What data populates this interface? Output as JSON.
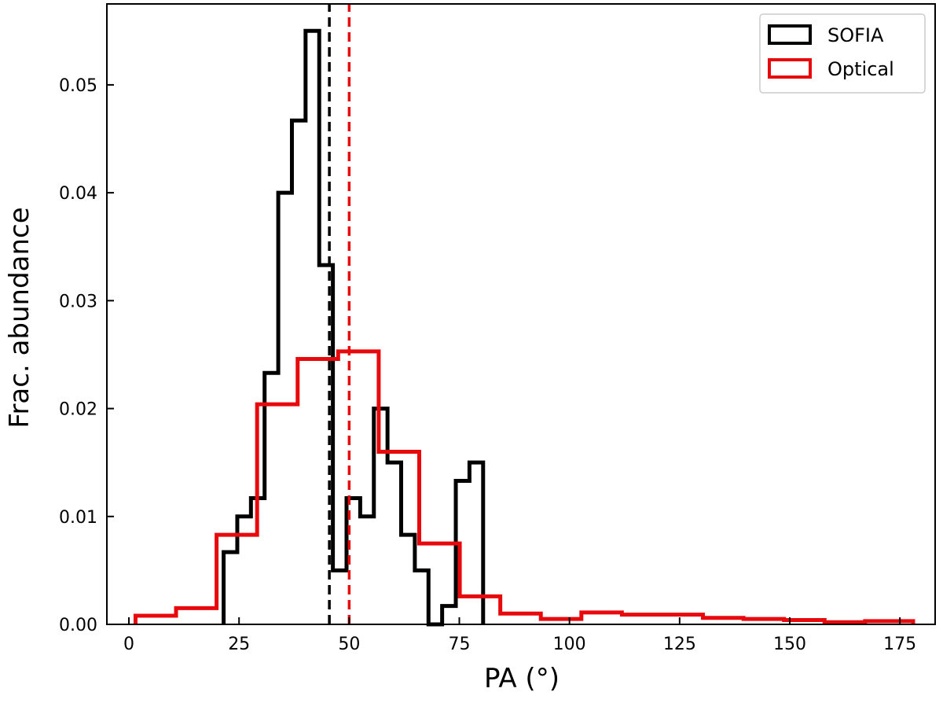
{
  "chart_data": {
    "type": "histogram",
    "xlabel": "PA (°)",
    "ylabel": "Frac. abundance",
    "xlim": [
      -5,
      183
    ],
    "ylim": [
      0,
      0.0575
    ],
    "xticks": [
      0,
      25,
      50,
      75,
      100,
      125,
      150,
      175
    ],
    "yticks": [
      0.0,
      0.01,
      0.02,
      0.03,
      0.04,
      0.05
    ],
    "ytick_labels": [
      "0.00",
      "0.01",
      "0.02",
      "0.03",
      "0.04",
      "0.05"
    ],
    "grid": false,
    "legend_position": "top-right",
    "series": [
      {
        "name": "SOFIA",
        "color": "#000000",
        "bin_edges": [
          21.5,
          24.6,
          27.7,
          30.8,
          33.9,
          37.0,
          40.1,
          43.2,
          46.3,
          49.4,
          52.5,
          55.6,
          58.7,
          61.8,
          64.9,
          68.0,
          71.1,
          74.2,
          77.3,
          80.4
        ],
        "values": [
          0.0067,
          0.01,
          0.0117,
          0.0233,
          0.04,
          0.0467,
          0.055,
          0.0333,
          0.005,
          0.0117,
          0.01,
          0.02,
          0.015,
          0.0083,
          0.005,
          0.0,
          0.0017,
          0.0133,
          0.015
        ],
        "median": 45.5
      },
      {
        "name": "Optical",
        "color": "#e8090c",
        "bin_edges": [
          1.5,
          10.7,
          19.9,
          29.1,
          38.3,
          47.5,
          56.7,
          65.9,
          75.1,
          84.3,
          93.5,
          102.7,
          111.9,
          121.1,
          130.3,
          139.5,
          148.7,
          157.9,
          167.1,
          176.3,
          178.0
        ],
        "values": [
          0.0008,
          0.0015,
          0.0083,
          0.0204,
          0.0246,
          0.0253,
          0.016,
          0.0075,
          0.0026,
          0.001,
          0.0005,
          0.0011,
          0.0009,
          0.0009,
          0.0006,
          0.0005,
          0.0004,
          0.0002,
          0.0003,
          0.0003
        ],
        "median": 50.0
      }
    ]
  }
}
